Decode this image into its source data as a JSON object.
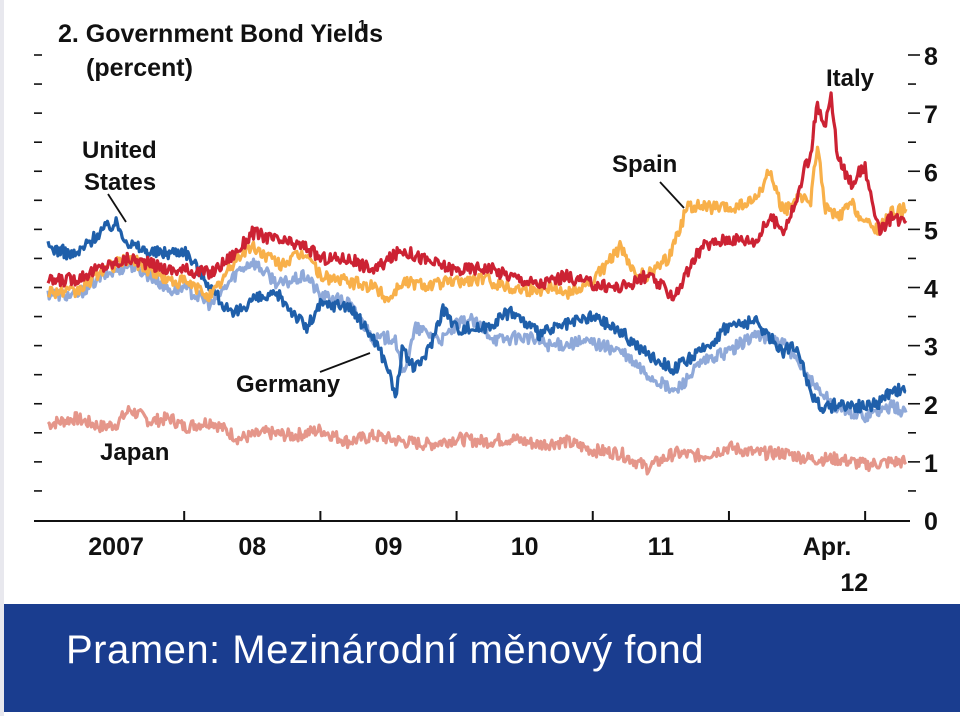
{
  "chart_data": {
    "type": "line",
    "title": "2. Government Bond Yields",
    "title_footnote": "1",
    "subtitle": "(percent)",
    "x_ticks": [
      "2007",
      "08",
      "09",
      "10",
      "11",
      "Apr."
    ],
    "x_tick_sub": "12",
    "y_ticks": [
      0,
      1,
      2,
      3,
      4,
      5,
      6,
      7,
      8
    ],
    "ylim": [
      0,
      8
    ],
    "xlim": [
      2006.0,
      2012.3
    ],
    "series": [
      {
        "name": "Japan",
        "color": "#e5968a",
        "x": [
          2006.0,
          2006.2,
          2006.4,
          2006.5,
          2006.6,
          2006.75,
          2006.9,
          2007.0,
          2007.2,
          2007.4,
          2007.6,
          2007.8,
          2008.0,
          2008.2,
          2008.4,
          2008.6,
          2008.8,
          2009.0,
          2009.2,
          2009.4,
          2009.6,
          2009.8,
          2010.0,
          2010.2,
          2010.4,
          2010.6,
          2010.8,
          2011.0,
          2011.2,
          2011.4,
          2011.6,
          2011.8,
          2012.0,
          2012.2,
          2012.3
        ],
        "y": [
          1.65,
          1.75,
          1.6,
          1.65,
          1.9,
          1.7,
          1.75,
          1.6,
          1.7,
          1.4,
          1.5,
          1.45,
          1.55,
          1.35,
          1.45,
          1.35,
          1.3,
          1.4,
          1.35,
          1.4,
          1.3,
          1.35,
          1.2,
          1.15,
          0.9,
          1.15,
          1.1,
          1.25,
          1.15,
          1.15,
          1.05,
          1.05,
          0.95,
          1.0,
          1.0
        ]
      },
      {
        "name": "Germany",
        "color": "#8fa9d9",
        "x": [
          2006.0,
          2006.2,
          2006.4,
          2006.6,
          2006.75,
          2006.9,
          2007.0,
          2007.2,
          2007.4,
          2007.5,
          2007.7,
          2007.9,
          2008.0,
          2008.2,
          2008.4,
          2008.55,
          2008.6,
          2008.65,
          2008.7,
          2008.8,
          2008.9,
          2009.0,
          2009.1,
          2009.3,
          2009.5,
          2009.7,
          2009.9,
          2010.0,
          2010.2,
          2010.4,
          2010.6,
          2010.8,
          2011.0,
          2011.2,
          2011.4,
          2011.5,
          2011.6,
          2011.8,
          2012.0,
          2012.2,
          2012.3
        ],
        "y": [
          3.9,
          3.85,
          4.2,
          4.4,
          4.2,
          3.95,
          4.0,
          3.7,
          4.3,
          4.45,
          4.05,
          4.2,
          3.85,
          3.75,
          3.1,
          3.15,
          2.5,
          2.85,
          3.3,
          3.2,
          3.1,
          3.35,
          3.45,
          3.1,
          3.15,
          3.0,
          3.05,
          3.05,
          2.9,
          2.5,
          2.2,
          2.7,
          2.9,
          3.2,
          3.05,
          2.7,
          2.4,
          1.9,
          1.8,
          1.95,
          1.85
        ]
      },
      {
        "name": "United States",
        "color": "#1f5faa",
        "x": [
          2006.0,
          2006.2,
          2006.4,
          2006.5,
          2006.6,
          2006.75,
          2006.9,
          2007.0,
          2007.2,
          2007.35,
          2007.5,
          2007.7,
          2007.9,
          2008.0,
          2008.2,
          2008.4,
          2008.5,
          2008.55,
          2008.6,
          2008.7,
          2008.8,
          2008.9,
          2009.0,
          2009.2,
          2009.4,
          2009.6,
          2009.8,
          2010.0,
          2010.2,
          2010.4,
          2010.6,
          2010.8,
          2011.0,
          2011.2,
          2011.4,
          2011.5,
          2011.6,
          2011.7,
          2011.8,
          2012.0,
          2012.1,
          2012.2,
          2012.3
        ],
        "y": [
          4.7,
          4.55,
          5.0,
          5.1,
          4.75,
          4.6,
          4.6,
          4.65,
          4.0,
          3.5,
          3.8,
          3.85,
          3.3,
          3.7,
          3.7,
          3.1,
          2.6,
          2.1,
          2.9,
          2.6,
          2.95,
          3.65,
          3.3,
          3.3,
          3.6,
          3.2,
          3.35,
          3.5,
          3.25,
          2.85,
          2.6,
          2.9,
          3.35,
          3.4,
          2.9,
          3.0,
          2.2,
          1.9,
          2.0,
          1.95,
          2.0,
          2.25,
          2.2
        ]
      },
      {
        "name": "Spain",
        "color": "#f8b04a",
        "x": [
          2006.0,
          2006.2,
          2006.4,
          2006.6,
          2006.75,
          2006.9,
          2007.0,
          2007.2,
          2007.4,
          2007.5,
          2007.7,
          2007.9,
          2008.0,
          2008.2,
          2008.4,
          2008.5,
          2008.6,
          2008.8,
          2009.0,
          2009.2,
          2009.4,
          2009.6,
          2009.7,
          2009.8,
          2010.0,
          2010.2,
          2010.3,
          2010.4,
          2010.55,
          2010.65,
          2010.7,
          2010.8,
          2011.0,
          2011.2,
          2011.3,
          2011.4,
          2011.5,
          2011.6,
          2011.65,
          2011.7,
          2011.8,
          2011.9,
          2012.0,
          2012.1,
          2012.2,
          2012.3
        ],
        "y": [
          3.95,
          3.9,
          4.3,
          4.5,
          4.3,
          4.1,
          4.1,
          3.85,
          4.55,
          4.7,
          4.4,
          4.6,
          4.2,
          4.1,
          4.0,
          3.8,
          4.1,
          4.05,
          4.1,
          4.15,
          4.0,
          3.95,
          4.05,
          3.9,
          4.1,
          4.7,
          4.25,
          4.2,
          4.5,
          5.1,
          5.4,
          5.4,
          5.35,
          5.5,
          6.0,
          5.3,
          5.5,
          5.5,
          6.5,
          5.4,
          5.2,
          5.45,
          5.1,
          5.0,
          5.3,
          5.35
        ]
      },
      {
        "name": "Italy",
        "color": "#cc2233",
        "x": [
          2006.0,
          2006.2,
          2006.4,
          2006.6,
          2006.75,
          2006.9,
          2007.0,
          2007.2,
          2007.4,
          2007.5,
          2007.7,
          2007.9,
          2008.0,
          2008.2,
          2008.4,
          2008.6,
          2008.8,
          2009.0,
          2009.2,
          2009.4,
          2009.6,
          2009.8,
          2010.0,
          2010.2,
          2010.4,
          2010.6,
          2010.8,
          2011.0,
          2011.2,
          2011.3,
          2011.4,
          2011.5,
          2011.55,
          2011.6,
          2011.65,
          2011.7,
          2011.75,
          2011.8,
          2011.9,
          2012.0,
          2012.05,
          2012.1,
          2012.2,
          2012.3
        ],
        "y": [
          4.1,
          4.15,
          4.35,
          4.5,
          4.4,
          4.3,
          4.3,
          4.25,
          4.65,
          4.95,
          4.8,
          4.7,
          4.5,
          4.5,
          4.3,
          4.65,
          4.45,
          4.3,
          4.35,
          4.2,
          4.05,
          4.2,
          4.05,
          4.0,
          4.2,
          3.85,
          4.7,
          4.85,
          4.8,
          5.2,
          5.0,
          5.5,
          6.0,
          6.3,
          7.2,
          6.7,
          7.3,
          6.2,
          5.8,
          6.1,
          5.4,
          5.0,
          5.2,
          5.15
        ]
      }
    ],
    "annotations": {
      "united_states_1": "United",
      "united_states_2": "States",
      "spain": "Spain",
      "italy": "Italy",
      "germany": "Germany",
      "japan": "Japan"
    },
    "grid": false
  },
  "footer": {
    "source_text": "Pramen: Mezinárodní měnový fond",
    "background": "#1a3d8f"
  }
}
